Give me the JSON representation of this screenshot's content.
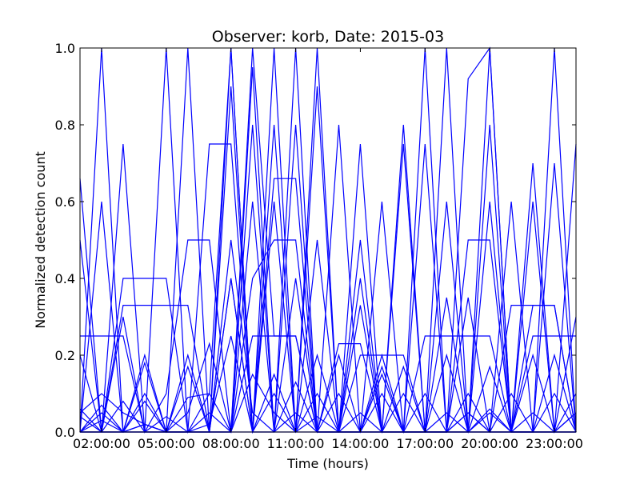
{
  "chart_data": {
    "type": "line",
    "title": "Observer: korb, Date: 2015-03",
    "xlabel": "Time (hours)",
    "ylabel": "Normalized detection count",
    "x_ticks": [
      "02:00:00",
      "05:00:00",
      "08:00:00",
      "11:00:00",
      "14:00:00",
      "17:00:00",
      "20:00:00",
      "23:00:00"
    ],
    "y_ticks": [
      "0.0",
      "0.2",
      "0.4",
      "0.6",
      "0.8",
      "1.0"
    ],
    "xlim": [
      1.0,
      24.0
    ],
    "ylim": [
      0.0,
      1.0
    ],
    "grid": false,
    "legend": "none",
    "color": "#0000ff",
    "x": [
      1,
      2,
      3,
      4,
      5,
      6,
      7,
      8,
      9,
      10,
      11,
      12,
      13,
      14,
      15,
      16,
      17,
      18,
      19,
      20,
      21,
      22,
      23,
      24
    ],
    "series": [
      {
        "values": [
          0.0,
          1.0,
          0.0,
          0.2,
          0.0,
          1.0,
          0.0,
          0.0,
          1.0,
          0.25,
          0.25,
          0.0,
          0.1,
          0.0,
          0.2,
          0.0,
          1.0,
          0.0,
          0.0,
          1.0,
          0.0,
          0.2,
          0.0,
          0.05
        ]
      },
      {
        "values": [
          0.66,
          0.0,
          0.75,
          0.0,
          0.1,
          0.5,
          0.5,
          0.0,
          0.95,
          0.0,
          0.8,
          0.0,
          0.0,
          0.4,
          0.0,
          0.0,
          0.75,
          0.0,
          0.05,
          0.0,
          0.6,
          0.0,
          0.7,
          0.0
        ]
      },
      {
        "values": [
          0.5,
          0.0,
          0.4,
          0.4,
          0.4,
          0.0,
          0.75,
          0.75,
          0.0,
          0.66,
          0.66,
          0.0,
          0.0,
          0.2,
          0.2,
          0.2,
          0.0,
          0.0,
          0.5,
          0.5,
          0.0,
          0.33,
          0.33,
          0.0
        ]
      },
      {
        "values": [
          0.25,
          0.25,
          0.25,
          0.0,
          0.0,
          0.2,
          0.0,
          0.0,
          0.4,
          0.5,
          0.5,
          0.0,
          0.0,
          0.0,
          0.15,
          0.0,
          0.25,
          0.25,
          0.25,
          0.25,
          0.0,
          0.25,
          0.25,
          0.25
        ]
      },
      {
        "values": [
          0.2,
          0.0,
          0.33,
          0.33,
          0.33,
          0.33,
          0.0,
          0.0,
          0.25,
          0.25,
          0.25,
          0.0,
          0.23,
          0.23,
          0.0,
          0.17,
          0.0,
          0.0,
          0.35,
          0.0,
          0.33,
          0.33,
          0.33,
          0.0
        ]
      },
      {
        "values": [
          0.0,
          0.6,
          0.0,
          0.0,
          1.0,
          0.0,
          0.1,
          1.0,
          0.0,
          0.8,
          0.0,
          0.9,
          0.0,
          0.5,
          0.0,
          0.75,
          0.0,
          0.6,
          0.0,
          0.0,
          0.0,
          0.7,
          0.0,
          0.75
        ]
      },
      {
        "values": [
          0.05,
          0.1,
          0.05,
          0.02,
          0.0,
          0.17,
          0.0,
          0.4,
          0.0,
          0.6,
          0.0,
          0.5,
          0.0,
          0.33,
          0.0,
          0.0,
          0.0,
          0.2,
          0.0,
          0.17,
          0.0,
          0.0,
          0.0,
          0.3
        ]
      },
      {
        "values": [
          0.0,
          0.03,
          0.0,
          0.08,
          0.0,
          0.05,
          0.23,
          0.0,
          0.8,
          0.0,
          1.0,
          0.0,
          0.8,
          0.0,
          0.6,
          0.0,
          0.0,
          0.35,
          0.0,
          0.6,
          0.0,
          0.6,
          0.0,
          0.1
        ]
      },
      {
        "values": [
          0.0,
          0.0,
          0.08,
          0.0,
          0.04,
          0.0,
          0.02,
          0.25,
          0.0,
          0.15,
          0.0,
          0.04,
          0.0,
          0.0,
          0.0,
          0.1,
          0.0,
          0.05,
          0.0,
          0.06,
          0.0,
          0.0,
          0.0,
          0.0
        ]
      },
      {
        "values": [
          0.06,
          0.0,
          0.0,
          0.1,
          0.0,
          0.0,
          0.05,
          0.0,
          0.15,
          0.05,
          0.0,
          0.1,
          0.0,
          0.05,
          0.0,
          0.0,
          0.1,
          0.0,
          0.05,
          0.0,
          0.1,
          0.0,
          0.1,
          0.0
        ]
      },
      {
        "values": [
          0.0,
          0.05,
          0.0,
          0.18,
          0.0,
          0.09,
          0.1,
          0.0,
          0.6,
          0.0,
          0.4,
          0.0,
          0.2,
          0.0,
          0.1,
          0.0,
          0.0,
          0.0,
          0.1,
          0.0,
          0.0,
          0.0,
          0.0,
          0.05
        ]
      },
      {
        "values": [
          0.0,
          0.0,
          0.3,
          0.0,
          0.0,
          0.0,
          0.0,
          1.0,
          0.0,
          1.0,
          0.0,
          1.0,
          0.0,
          0.75,
          0.0,
          0.8,
          0.0,
          1.0,
          0.0,
          0.8,
          0.0,
          0.0,
          1.0,
          0.0
        ]
      },
      {
        "values": [
          0.04,
          0.0,
          0.0,
          0.02,
          0.0,
          0.0,
          0.0,
          0.4,
          0.0,
          0.1,
          0.0,
          0.2,
          0.0,
          0.0,
          0.0,
          0.0,
          0.0,
          0.0,
          0.0,
          0.0,
          0.0,
          0.0,
          0.2,
          0.0
        ]
      },
      {
        "values": [
          0.0,
          0.07,
          0.0,
          0.0,
          0.0,
          0.0,
          0.0,
          0.5,
          0.05,
          0.0,
          0.13,
          0.0,
          0.0,
          0.0,
          0.0,
          0.0,
          0.0,
          0.0,
          0.0,
          0.05,
          0.0,
          0.0,
          0.0,
          0.0
        ]
      },
      {
        "values": [
          0.0,
          0.0,
          0.0,
          0.0,
          0.0,
          0.0,
          0.0,
          0.0,
          0.0,
          0.0,
          0.0,
          0.0,
          0.0,
          0.0,
          0.0,
          0.0,
          0.0,
          0.0,
          0.92,
          1.0,
          0.0,
          0.0,
          0.0,
          0.0
        ]
      },
      {
        "values": [
          0.0,
          0.0,
          0.0,
          0.02,
          0.0,
          0.0,
          0.0,
          0.9,
          0.0,
          0.0,
          0.05,
          0.0,
          0.0,
          0.0,
          0.17,
          0.0,
          0.0,
          0.0,
          0.0,
          0.0,
          0.0,
          0.05,
          0.0,
          0.0
        ]
      }
    ]
  }
}
